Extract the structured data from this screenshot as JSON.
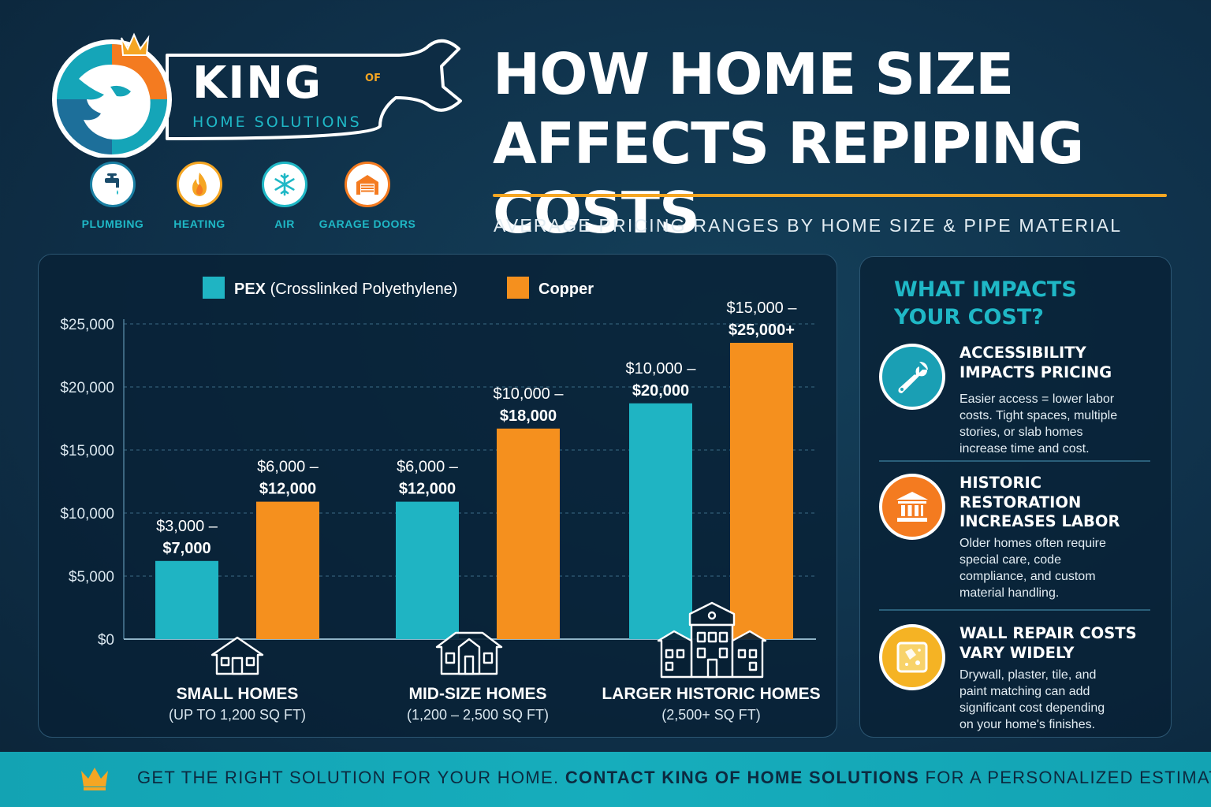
{
  "brand": {
    "name": "KING",
    "of": "OF",
    "tagline": "HOME SOLUTIONS"
  },
  "services": [
    {
      "label": "PLUMBING",
      "icon": "faucet-icon",
      "color": "#1a7fa3"
    },
    {
      "label": "HEATING",
      "icon": "flame-icon",
      "color": "#f5a623"
    },
    {
      "label": "AIR",
      "icon": "snowflake-icon",
      "color": "#1fb8c6"
    },
    {
      "label": "GARAGE DOORS",
      "icon": "garage-door-icon",
      "color": "#f47b20"
    }
  ],
  "header": {
    "title_line1": "HOW HOME SIZE",
    "title_line2": "AFFECTS REPIPING COSTS",
    "subtitle": "AVERAGE PRICING RANGES BY HOME SIZE & PIPE MATERIAL"
  },
  "chart_data": {
    "type": "bar",
    "title": "",
    "xlabel": "",
    "ylabel": "",
    "ylim": [
      0,
      25000
    ],
    "yticks": [
      0,
      5000,
      10000,
      15000,
      20000,
      25000
    ],
    "ytick_labels": [
      "$0",
      "$5,000",
      "$10,000",
      "$15,000",
      "$20,000",
      "$25,000"
    ],
    "grid": true,
    "legend_position": "top",
    "categories": [
      {
        "name": "SMALL HOMES",
        "size": "(UP TO 1,200 SQ FT)",
        "icon": "small-house-icon"
      },
      {
        "name": "MID-SIZE HOMES",
        "size": "(1,200 – 2,500 SQ FT)",
        "icon": "mid-house-icon"
      },
      {
        "name": "LARGER HISTORIC HOMES",
        "size": "(2,500+ SQ FT)",
        "icon": "historic-house-icon"
      }
    ],
    "series": [
      {
        "name": "PEX",
        "name_detail": "(Crosslinked Polyethylene)",
        "color": "#1fb4c3",
        "values": [
          6200,
          10900,
          18700
        ],
        "labels": [
          {
            "low": "$3,000 –",
            "high": "$7,000"
          },
          {
            "low": "$6,000 –",
            "high": "$12,000"
          },
          {
            "low": "$10,000 –",
            "high": "$20,000"
          }
        ]
      },
      {
        "name": "Copper",
        "name_detail": "",
        "color": "#f5901e",
        "values": [
          10900,
          16700,
          23500
        ],
        "labels": [
          {
            "low": "$6,000 –",
            "high": "$12,000"
          },
          {
            "low": "$10,000 –",
            "high": "$18,000"
          },
          {
            "low": "$15,000 –",
            "high": "$25,000+"
          }
        ]
      }
    ]
  },
  "side": {
    "title_line1": "WHAT IMPACTS",
    "title_line2": "YOUR COST?",
    "items": [
      {
        "heading_lines": [
          "ACCESSIBILITY",
          "IMPACTS PRICING"
        ],
        "desc_lines": [
          "Easier access = lower labor",
          "costs. Tight spaces, multiple",
          "stories, or slab homes",
          "increase time and cost."
        ],
        "icon": "wrench-icon",
        "color": "#1a9fb4"
      },
      {
        "heading_lines": [
          "HISTORIC",
          "RESTORATION",
          "INCREASES LABOR"
        ],
        "desc_lines": [
          "Older homes often require",
          "special care, code",
          "compliance, and custom",
          "material handling."
        ],
        "icon": "building-columns-icon",
        "color": "#f47b20"
      },
      {
        "heading_lines": [
          "WALL REPAIR COSTS",
          "VARY WIDELY"
        ],
        "desc_lines": [
          "Drywall, plaster, tile, and",
          "paint matching can add",
          "significant cost depending",
          "on your home's finishes."
        ],
        "icon": "wall-patch-icon",
        "color": "#f5b324"
      }
    ]
  },
  "footer": {
    "text_part1": "GET THE RIGHT SOLUTION FOR YOUR HOME.",
    "text_bold": "CONTACT KING OF HOME SOLUTIONS",
    "text_part2": "FOR A PERSONALIZED ESTIMATE.",
    "icon": "crown-icon"
  }
}
